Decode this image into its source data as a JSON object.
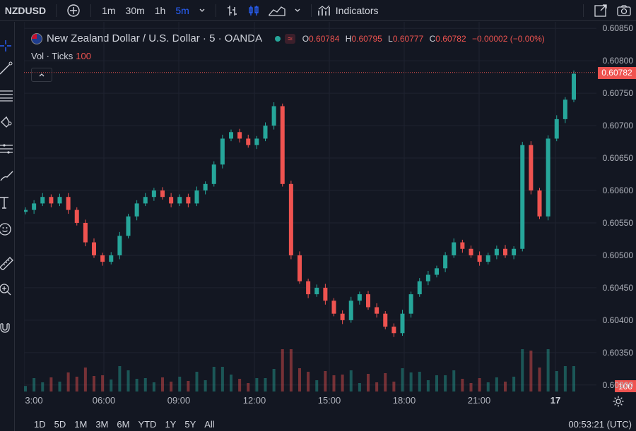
{
  "toolbar": {
    "symbol": "NZDUSD",
    "intervals": [
      "1m",
      "30m",
      "1h",
      "5m"
    ],
    "active_interval": "5m",
    "indicators_label": "Indicators"
  },
  "legend": {
    "title": "New Zealand Dollar / U.S. Dollar · 5 · OANDA",
    "wave_button": "≈",
    "ohlc": {
      "o_label": "O",
      "o": "0.60784",
      "h_label": "H",
      "h": "0.60795",
      "l_label": "L",
      "l": "0.60777",
      "c_label": "C",
      "c": "0.60782",
      "change": "−0.00002 (−0.00%)"
    },
    "volume_label": "Vol · Ticks",
    "volume_value": "100"
  },
  "price_axis": {
    "ticks": [
      "0.60850",
      "0.60800",
      "0.60750",
      "0.60700",
      "0.60650",
      "0.60600",
      "0.60550",
      "0.60500",
      "0.60450",
      "0.60400",
      "0.60350",
      "0.60300"
    ],
    "last_price": "0.60782",
    "volume_tag": "100"
  },
  "time_axis": {
    "labels": [
      "3:00",
      "06:00",
      "09:00",
      "12:00",
      "15:00",
      "18:00",
      "21:00",
      "17"
    ]
  },
  "bottom_bar": {
    "ranges": [
      "1D",
      "5D",
      "1M",
      "3M",
      "6M",
      "YTD",
      "1Y",
      "5Y",
      "All"
    ],
    "clock": "00:53:21 (UTC)"
  },
  "colors": {
    "background": "#131722",
    "up": "#26a69a",
    "down": "#ef5350",
    "grid": "#1f2330"
  },
  "chart_data": {
    "type": "candlestick",
    "symbol": "NZDUSD",
    "ylim": [
      0.6029,
      0.6086
    ],
    "approx_closes": [
      0.6057,
      0.6058,
      0.6059,
      0.6058,
      0.6059,
      0.6057,
      0.6055,
      0.6052,
      0.605,
      0.6049,
      0.605,
      0.6053,
      0.6056,
      0.6058,
      0.6059,
      0.606,
      0.6059,
      0.6058,
      0.6059,
      0.6058,
      0.606,
      0.6061,
      0.6064,
      0.6068,
      0.6069,
      0.6068,
      0.6067,
      0.6068,
      0.607,
      0.6073,
      0.6061,
      0.605,
      0.6046,
      0.6044,
      0.6045,
      0.6043,
      0.6041,
      0.604,
      0.6043,
      0.6044,
      0.6042,
      0.6041,
      0.6039,
      0.6038,
      0.6041,
      0.6044,
      0.6046,
      0.6047,
      0.6048,
      0.605,
      0.6052,
      0.6051,
      0.605,
      0.6049,
      0.605,
      0.6051,
      0.605,
      0.6051,
      0.6067,
      0.606,
      0.6056,
      0.6068,
      0.6071,
      0.6074,
      0.6078
    ]
  }
}
